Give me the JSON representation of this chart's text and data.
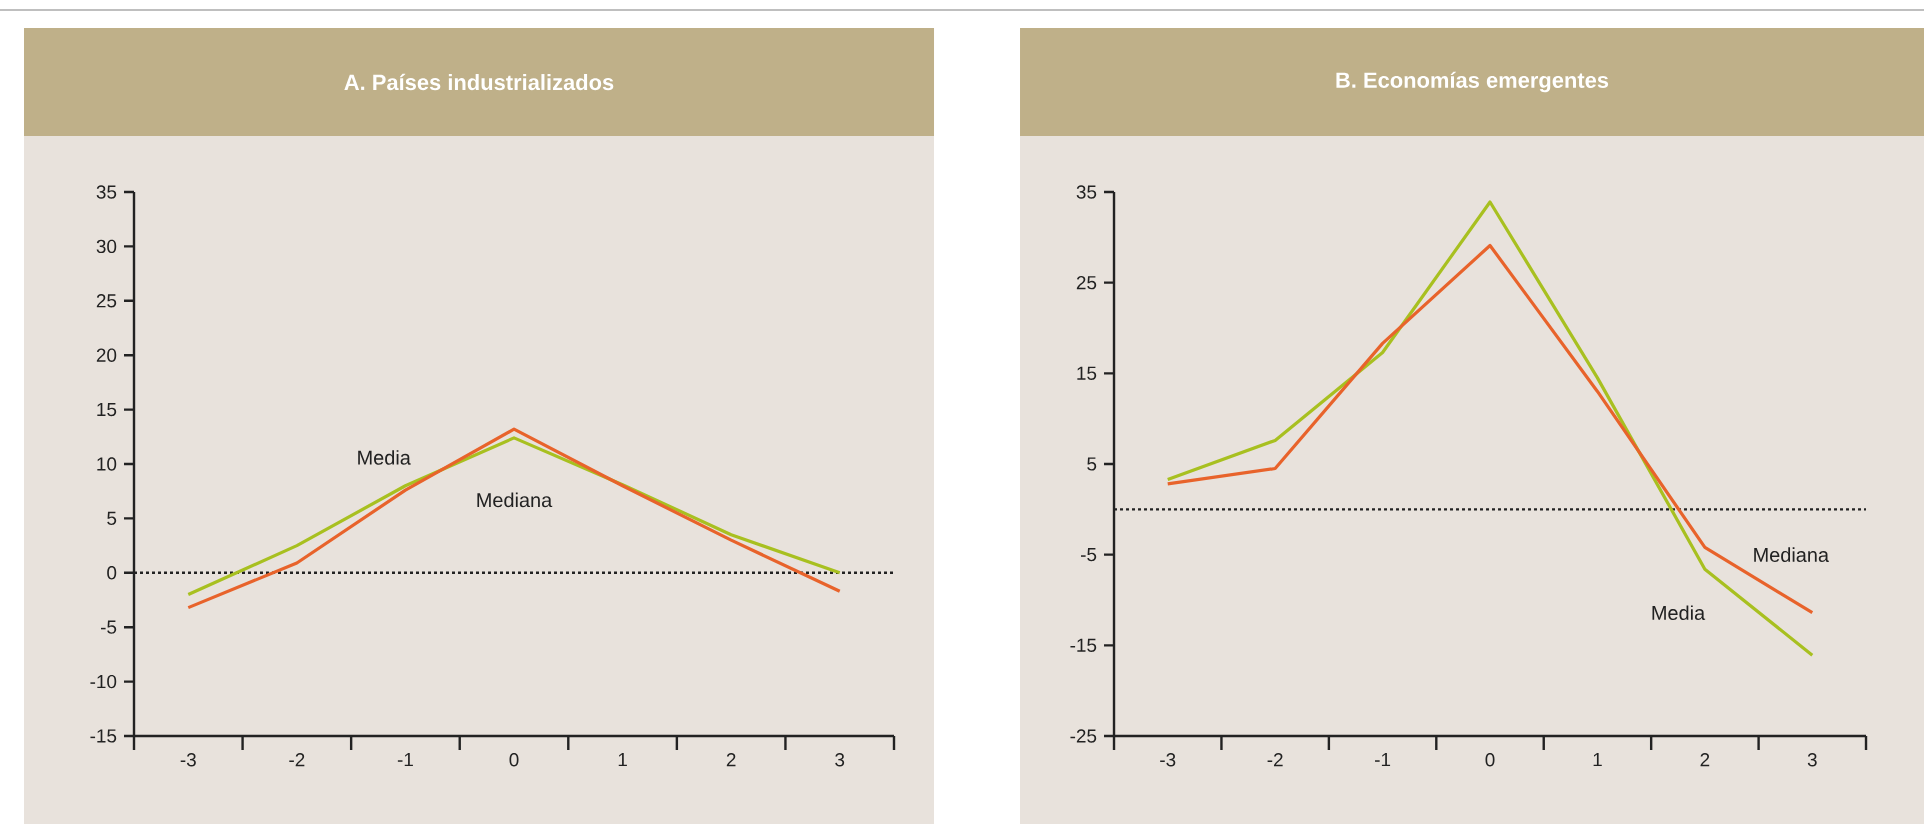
{
  "chart_data": [
    {
      "type": "line",
      "title": "A. Países industrializados",
      "x": [
        -3,
        -2,
        -1,
        0,
        1,
        2,
        3
      ],
      "series": [
        {
          "name": "Media",
          "color": "#a8c020",
          "values": [
            -2,
            2.5,
            8,
            12.4,
            8.1,
            3.5,
            0
          ]
        },
        {
          "name": "Mediana",
          "color": "#e8632b",
          "values": [
            -3.2,
            0.9,
            7.6,
            13.2,
            8,
            3,
            -1.7
          ]
        }
      ],
      "xlim": [
        -3.5,
        3.5
      ],
      "xticks": [
        -3,
        -2,
        -1,
        0,
        1,
        2,
        3,
        {
          "value": -3.5,
          "label": null
        },
        {
          "value": -2.5,
          "label": null
        },
        {
          "value": -1.5,
          "label": null
        },
        {
          "value": -0.5,
          "label": null
        },
        {
          "value": 0.5,
          "label": null
        },
        {
          "value": 1.5,
          "label": null
        },
        {
          "value": 2.5,
          "label": null
        },
        {
          "value": 3.5,
          "label": null
        }
      ],
      "ylim": [
        -15,
        35
      ],
      "yticks": [
        -15,
        -10,
        -5,
        0,
        5,
        10,
        15,
        20,
        25,
        30,
        35
      ],
      "ref_lines": [
        {
          "axis": "y",
          "value": 0,
          "line_style": "dotted",
          "color": "#222222"
        }
      ]
    },
    {
      "type": "line",
      "title": "B. Economías emergentes",
      "x": [
        -3,
        -2,
        -1,
        0,
        1,
        2,
        3
      ],
      "series": [
        {
          "name": "Media",
          "color": "#a8c020",
          "values": [
            3.3,
            7.6,
            17.3,
            33.9,
            14.5,
            -6.6,
            -16.1
          ]
        },
        {
          "name": "Mediana",
          "color": "#e8632b",
          "values": [
            2.8,
            4.5,
            18.3,
            29.1,
            13,
            -4.2,
            -11.4
          ]
        }
      ],
      "xlim": [
        -3.5,
        3.5
      ],
      "xticks": [
        -3,
        -2,
        -1,
        0,
        1,
        2,
        3,
        {
          "value": -3.5,
          "label": null
        },
        {
          "value": -2.5,
          "label": null
        },
        {
          "value": -1.5,
          "label": null
        },
        {
          "value": -0.5,
          "label": null
        },
        {
          "value": 0.5,
          "label": null
        },
        {
          "value": 1.5,
          "label": null
        },
        {
          "value": 2.5,
          "label": null
        },
        {
          "value": 3.5,
          "label": null
        }
      ],
      "ylim": [
        -25,
        35
      ],
      "yticks": [
        -25,
        -15,
        -5,
        5,
        15,
        25,
        35
      ],
      "ref_lines": [
        {
          "axis": "y",
          "value": 0,
          "line_style": "dotted",
          "color": "#222222"
        }
      ]
    }
  ]
}
